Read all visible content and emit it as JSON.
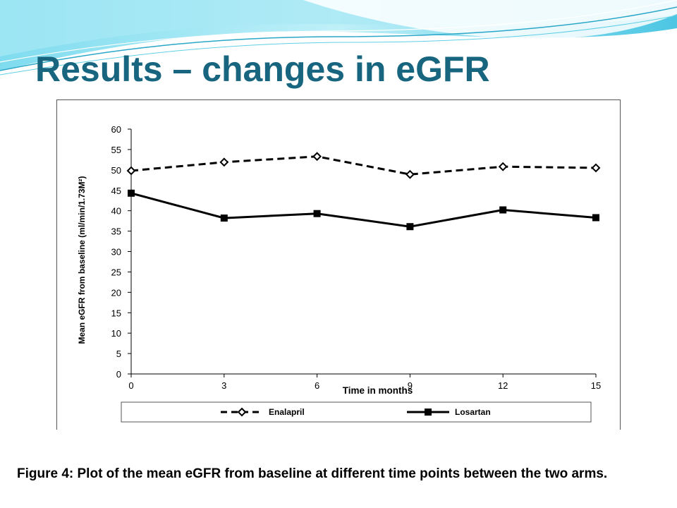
{
  "slide": {
    "title": "Results – changes in eGFR",
    "caption": "Figure 4: Plot of the mean eGFR from baseline at different  time points  between the two arms."
  },
  "theme": {
    "title_color": "#17657f",
    "wave_light": "#bfeaf4",
    "wave_mid": "#5fcfe6",
    "wave_dark": "#2aa7c8"
  },
  "chart_data": {
    "type": "line",
    "x": [
      0,
      3,
      6,
      9,
      12,
      15
    ],
    "xticks": [
      "0",
      "3",
      "6",
      "9",
      "12",
      "15"
    ],
    "yticks": [
      "0",
      "5",
      "10",
      "15",
      "20",
      "25",
      "30",
      "35",
      "40",
      "45",
      "50",
      "55",
      "60"
    ],
    "xlabel": "Time in months",
    "ylabel": "Mean eGFR from baseline (ml/min/1.73M²)",
    "ylim": [
      0,
      60
    ],
    "xlim": [
      0,
      15
    ],
    "grid": false,
    "legend_position": "bottom",
    "series": [
      {
        "name": "Enalapril",
        "values": [
          49.8,
          51.9,
          53.3,
          48.9,
          50.8,
          50.5
        ],
        "style": "dashed",
        "marker": "diamond",
        "color": "#000000"
      },
      {
        "name": "Losartan",
        "values": [
          44.3,
          38.2,
          39.3,
          36.1,
          40.2,
          38.3
        ],
        "style": "solid",
        "marker": "square",
        "color": "#000000"
      }
    ]
  }
}
